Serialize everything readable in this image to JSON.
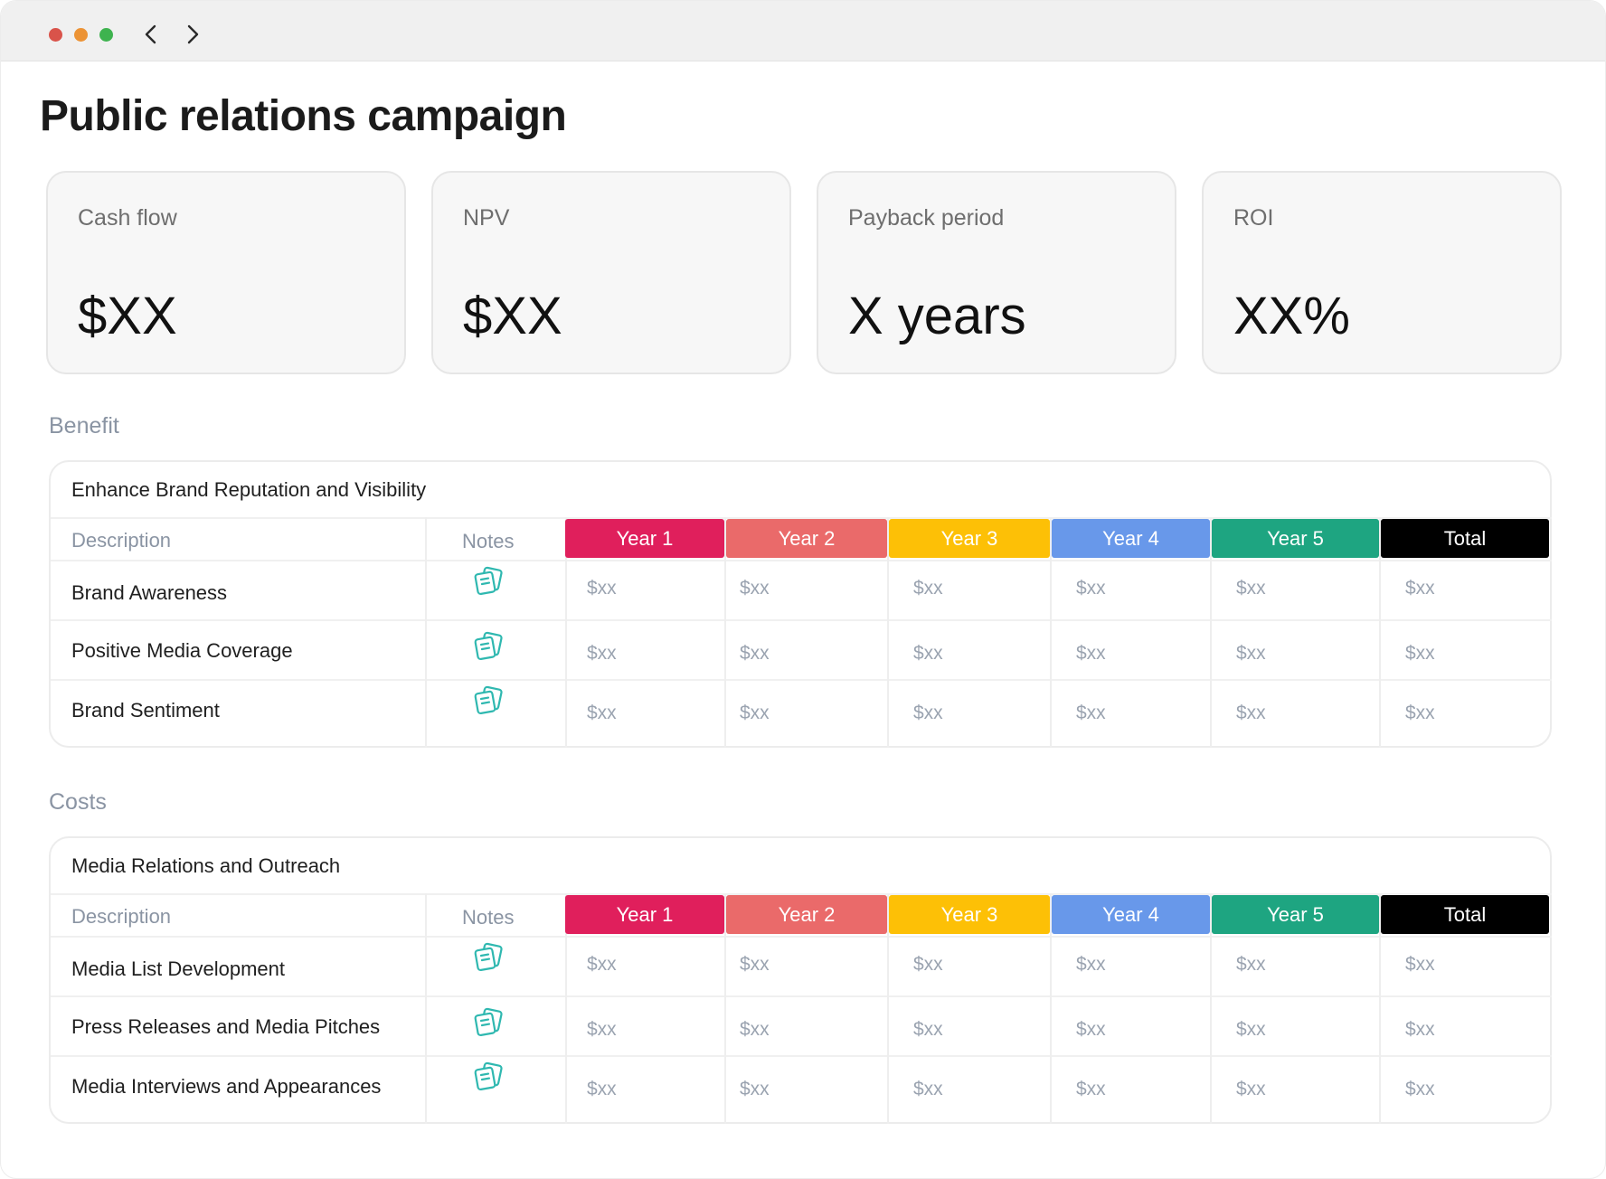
{
  "window": {
    "controls": [
      "close",
      "minimize",
      "zoom"
    ],
    "nav": {
      "back_icon": "chevron-left-icon",
      "forward_icon": "chevron-right-icon"
    }
  },
  "page": {
    "title": "Public relations campaign"
  },
  "kpis": [
    {
      "label": "Cash flow",
      "value": "$XX"
    },
    {
      "label": "NPV",
      "value": "$XX"
    },
    {
      "label": "Payback period",
      "value": "X years"
    },
    {
      "label": "ROI",
      "value": "XX%"
    }
  ],
  "colors": {
    "year1": "#e01f5c",
    "year2": "#ea6a6a",
    "year3": "#fdc006",
    "year4": "#6898ea",
    "year5": "#1ea581",
    "total": "#000000",
    "note_icon": "#2fb8b0"
  },
  "columns": {
    "description": "Description",
    "notes": "Notes",
    "years": [
      "Year 1",
      "Year 2",
      "Year 3",
      "Year 4",
      "Year 5",
      "Total"
    ]
  },
  "benefit": {
    "section_label": "Benefit",
    "group_title": "Enhance Brand Reputation and Visibility",
    "rows": [
      {
        "label": "Brand Awareness",
        "values": [
          "$xx",
          "$xx",
          "$xx",
          "$xx",
          "$xx",
          "$xx"
        ]
      },
      {
        "label": "Positive Media Coverage",
        "values": [
          "$xx",
          "$xx",
          "$xx",
          "$xx",
          "$xx",
          "$xx"
        ]
      },
      {
        "label": "Brand Sentiment",
        "values": [
          "$xx",
          "$xx",
          "$xx",
          "$xx",
          "$xx",
          "$xx"
        ]
      }
    ]
  },
  "costs": {
    "section_label": "Costs",
    "group_title": "Media Relations and Outreach",
    "rows": [
      {
        "label": "Media List Development",
        "values": [
          "$xx",
          "$xx",
          "$xx",
          "$xx",
          "$xx",
          "$xx"
        ]
      },
      {
        "label": "Press Releases and Media Pitches",
        "values": [
          "$xx",
          "$xx",
          "$xx",
          "$xx",
          "$xx",
          "$xx"
        ]
      },
      {
        "label": "Media Interviews and Appearances",
        "values": [
          "$xx",
          "$xx",
          "$xx",
          "$xx",
          "$xx",
          "$xx"
        ]
      }
    ]
  }
}
